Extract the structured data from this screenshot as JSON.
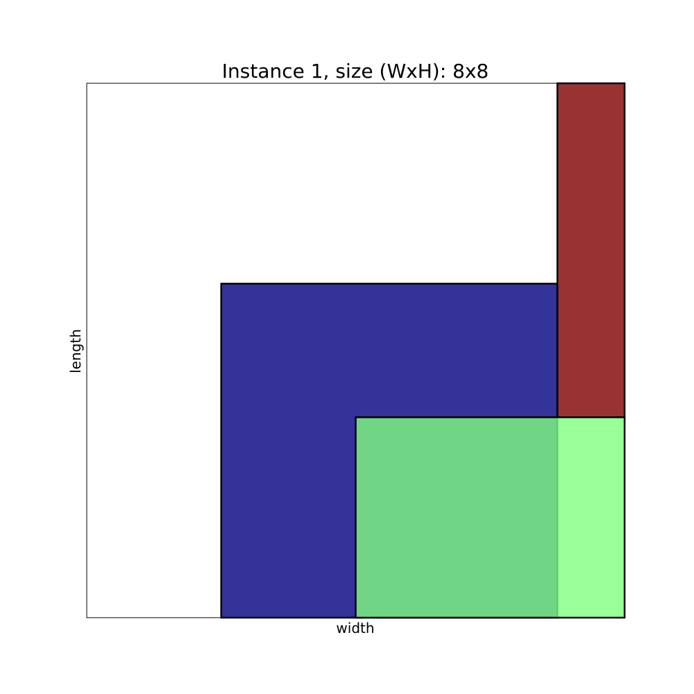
{
  "chart_data": {
    "type": "rectangle-packing",
    "title": "Instance 1, size (WxH): 8x8",
    "xlabel": "width",
    "ylabel": "length",
    "xlim": [
      0,
      8
    ],
    "ylim": [
      0,
      8
    ],
    "ticks_visible": false,
    "grid": false,
    "rectangles": [
      {
        "x": 2,
        "y": 0,
        "w": 5,
        "h": 5,
        "color": "#000080"
      },
      {
        "x": 7,
        "y": 3,
        "w": 1,
        "h": 5,
        "color": "#800000"
      },
      {
        "x": 4,
        "y": 0,
        "w": 4,
        "h": 3,
        "color": "#7fff7f"
      }
    ],
    "fill_alpha": 0.8,
    "edge_color": "#000000"
  }
}
